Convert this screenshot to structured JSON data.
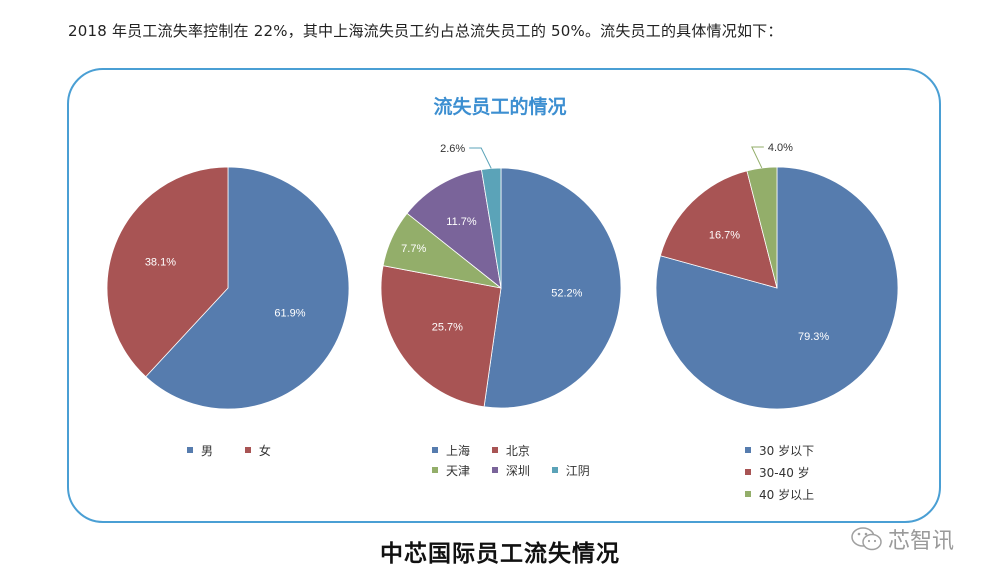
{
  "intro_text": "2018 年员工流失率控制在 22%，其中上海流失员工约占总流失员工的 50%。流失员工的具体情况如下：",
  "frame_title": "流失员工的情况",
  "caption": "中芯国际员工流失情况",
  "watermark": {
    "icon": "wechat-icon",
    "text": "芯智讯"
  },
  "colors": {
    "blue": "#567cae",
    "red": "#a85454",
    "green": "#93ae6a",
    "purple": "#7a649a",
    "teal": "#5ba3b8",
    "frame": "#4a9fd4",
    "title": "#3d8fd1"
  },
  "chart_data": [
    {
      "type": "pie",
      "title": "流失员工的情况 - 性别",
      "categories": [
        "男",
        "女"
      ],
      "values": [
        61.9,
        38.1
      ],
      "labels": [
        "61.9%",
        "38.1%"
      ],
      "colors": [
        "#567cae",
        "#a85454"
      ],
      "legend_position": "bottom"
    },
    {
      "type": "pie",
      "title": "流失员工的情况 - 地区",
      "categories": [
        "上海",
        "北京",
        "天津",
        "深圳",
        "江阴"
      ],
      "values": [
        52.2,
        25.7,
        7.7,
        11.7,
        2.6
      ],
      "labels": [
        "52.2%",
        "25.7%",
        "7.7%",
        "11.7%",
        "2.6%"
      ],
      "colors": [
        "#567cae",
        "#a85454",
        "#93ae6a",
        "#7a649a",
        "#5ba3b8"
      ],
      "legend_position": "bottom"
    },
    {
      "type": "pie",
      "title": "流失员工的情况 - 年龄",
      "categories": [
        "30 岁以下",
        "30-40 岁",
        "40 岁以上"
      ],
      "values": [
        79.3,
        16.7,
        4.0
      ],
      "labels": [
        "79.3%",
        "16.7%",
        "4.0%"
      ],
      "colors": [
        "#567cae",
        "#a85454",
        "#93ae6a"
      ],
      "legend_position": "bottom"
    }
  ],
  "legends": {
    "gender": [
      "男",
      "女"
    ],
    "region_row1": [
      "上海",
      "北京"
    ],
    "region_row2": [
      "天津",
      "深圳",
      "江阴"
    ],
    "age": [
      "30 岁以下",
      "30-40 岁",
      "40 岁以上"
    ]
  }
}
